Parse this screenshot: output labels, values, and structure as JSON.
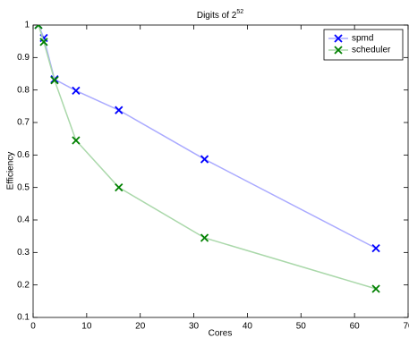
{
  "chart_data": {
    "type": "line",
    "title": {
      "text": "Digits of 2",
      "superscript": "52"
    },
    "x_label": "Cores",
    "y_label": "Efficiency",
    "x": [
      1,
      2,
      4,
      8,
      16,
      32,
      64
    ],
    "series": [
      {
        "name": "spmd",
        "color": "#0000ff",
        "line_color": "#aaaaff",
        "values": [
          1.0,
          0.96,
          0.833,
          0.798,
          0.738,
          0.587,
          0.313
        ]
      },
      {
        "name": "scheduler",
        "color": "#008000",
        "line_color": "#aad8aa",
        "values": [
          1.0,
          0.948,
          0.83,
          0.645,
          0.5,
          0.345,
          0.188
        ]
      }
    ],
    "xlim": [
      0,
      70
    ],
    "ylim": [
      0.1,
      1
    ],
    "xticks": [
      0,
      10,
      20,
      30,
      40,
      50,
      60,
      70
    ],
    "yticks": [
      0.1,
      0.2,
      0.3,
      0.4,
      0.5,
      0.6,
      0.7,
      0.8,
      0.9,
      1
    ],
    "legend": "top-right"
  }
}
